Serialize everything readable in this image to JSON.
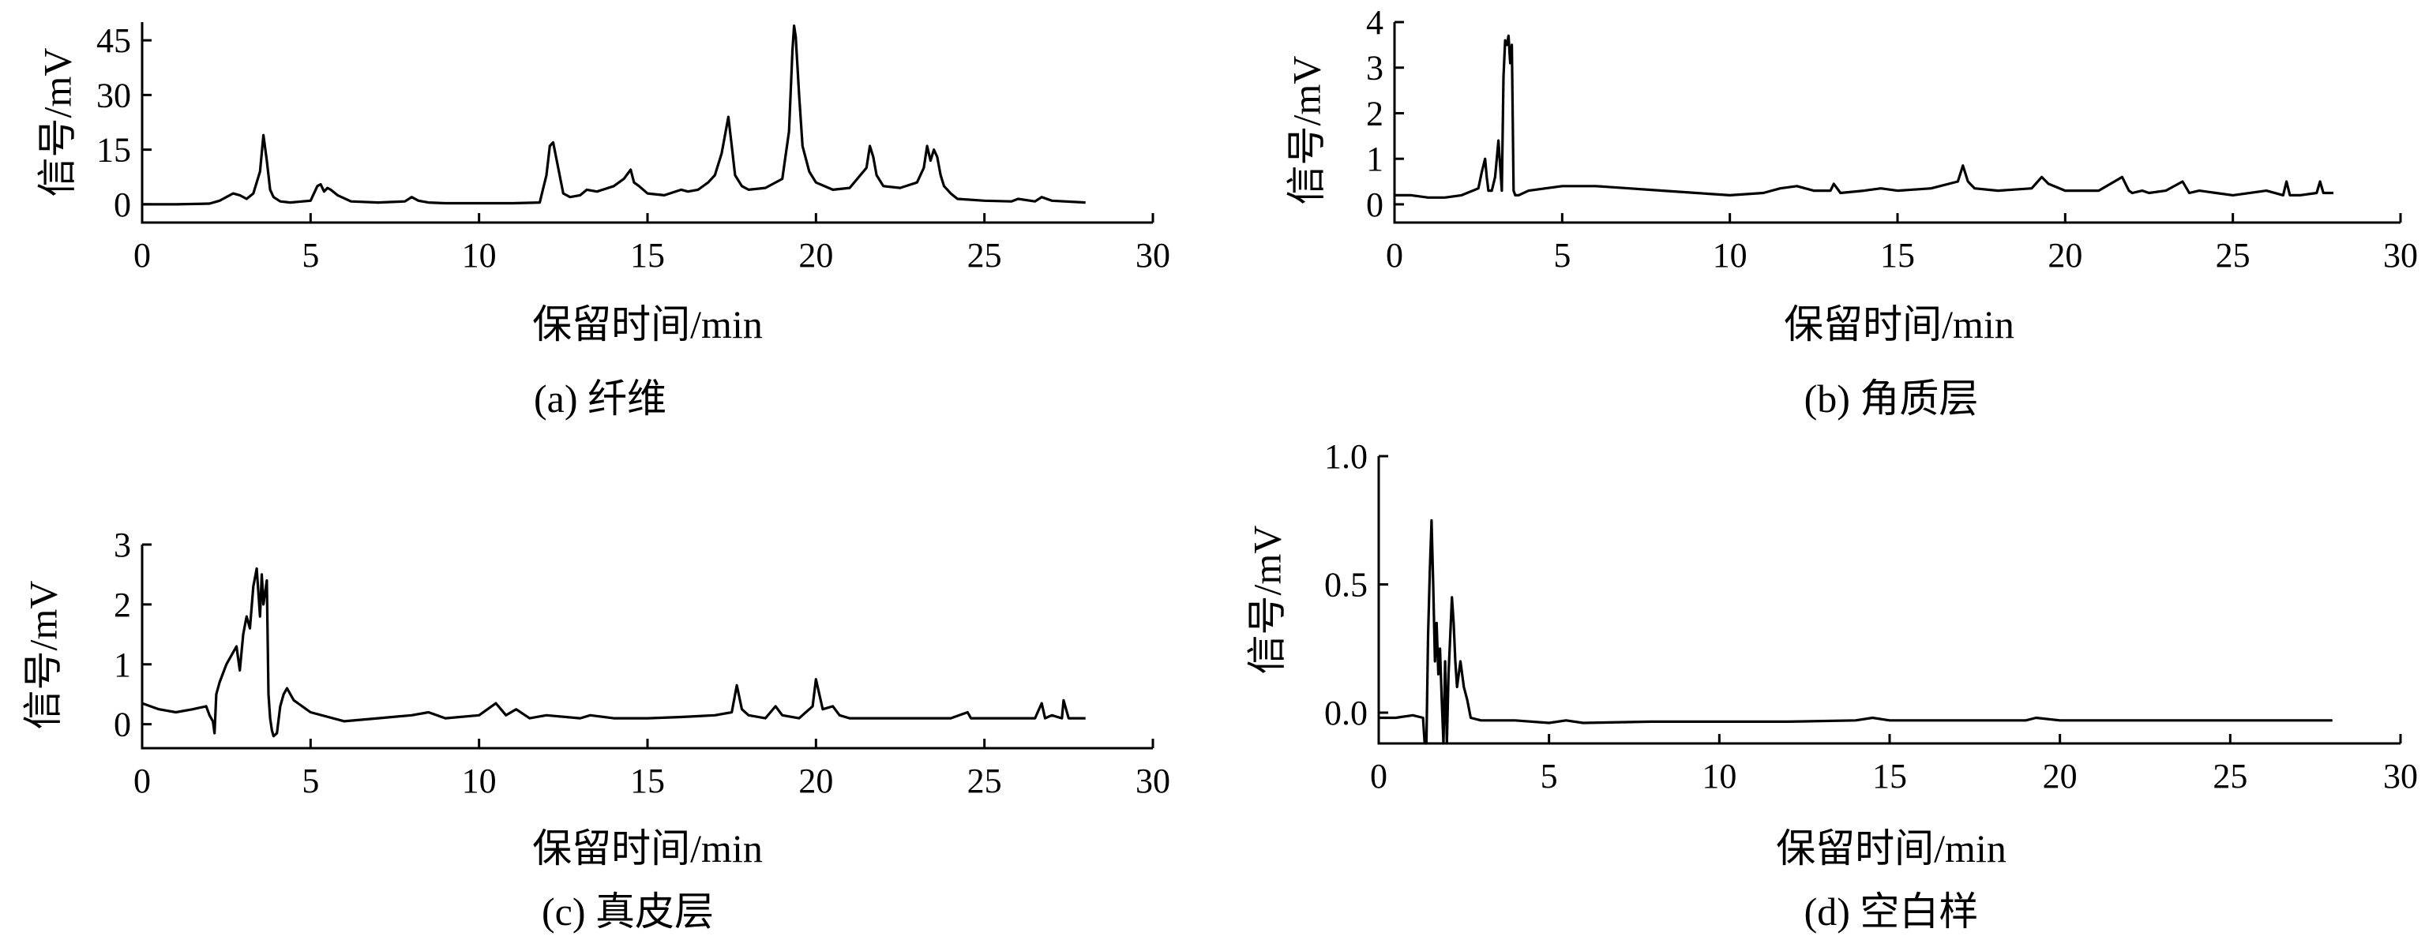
{
  "chart_data": [
    {
      "type": "line",
      "caption": "(a) 纤维",
      "xlabel": "保留时间/min",
      "ylabel": "信号/mV",
      "xlim": [
        0,
        30
      ],
      "ylim": [
        -5,
        50
      ],
      "xticks": [
        0,
        5,
        10,
        15,
        20,
        25,
        30
      ],
      "yticks": [
        0,
        15,
        30,
        45
      ],
      "series": [
        {
          "x": [
            0,
            1,
            2,
            2.3,
            2.5,
            2.7,
            2.9,
            3.1,
            3.3,
            3.5,
            3.6,
            3.7,
            3.8,
            3.9,
            4.1,
            4.4,
            5.0,
            5.2,
            5.3,
            5.4,
            5.5,
            5.6,
            5.8,
            6.2,
            7,
            7.8,
            8.0,
            8.2,
            8.5,
            9,
            10,
            11,
            11.8,
            12.0,
            12.1,
            12.2,
            12.35,
            12.5,
            12.7,
            13.0,
            13.2,
            13.5,
            14.0,
            14.3,
            14.5,
            14.6,
            14.75,
            15.0,
            15.5,
            16.0,
            16.2,
            16.5,
            16.8,
            17.0,
            17.2,
            17.4,
            17.5,
            17.6,
            17.8,
            18.0,
            18.5,
            19.0,
            19.2,
            19.3,
            19.35,
            19.4,
            19.5,
            19.6,
            19.8,
            20.0,
            20.5,
            21.0,
            21.5,
            21.6,
            21.7,
            21.8,
            22.0,
            22.5,
            23.0,
            23.2,
            23.3,
            23.4,
            23.5,
            23.6,
            23.7,
            23.8,
            24.0,
            24.2,
            25.0,
            25.8,
            26.0,
            26.5,
            26.7,
            27.0,
            28.0
          ],
          "y": [
            0,
            0,
            0.2,
            1,
            2,
            3,
            2.5,
            1.5,
            3,
            9,
            19,
            12,
            4,
            2,
            0.8,
            0.5,
            1,
            5,
            5.5,
            3.5,
            4.5,
            4,
            2.5,
            0.8,
            0.5,
            0.8,
            2,
            1,
            0.5,
            0.3,
            0.3,
            0.3,
            0.5,
            8,
            16,
            17,
            10,
            3,
            2,
            2.5,
            4,
            3.5,
            5,
            7,
            9.5,
            6,
            5,
            3,
            2.5,
            4,
            3.5,
            4,
            6,
            8,
            14,
            24,
            16,
            8,
            5,
            4,
            4.5,
            7,
            20,
            42,
            49,
            46,
            30,
            16,
            9,
            6,
            4,
            4.5,
            10,
            16,
            13,
            8,
            5,
            4.5,
            6,
            10,
            16,
            12,
            15,
            13,
            8,
            5,
            3,
            1.5,
            1,
            0.8,
            1.5,
            0.8,
            2,
            1,
            0.5
          ]
        }
      ]
    },
    {
      "type": "line",
      "caption": "(b) 角质层",
      "xlabel": "保留时间/min",
      "ylabel": "信号/mV",
      "xlim": [
        0,
        30
      ],
      "ylim": [
        -0.4,
        4
      ],
      "xticks": [
        0,
        5,
        10,
        15,
        20,
        25,
        30
      ],
      "yticks": [
        0,
        1,
        2,
        3,
        4
      ],
      "series": [
        {
          "x": [
            0,
            0.5,
            1,
            1.5,
            2,
            2.5,
            2.6,
            2.7,
            2.75,
            2.8,
            2.9,
            3.0,
            3.1,
            3.2,
            3.25,
            3.3,
            3.35,
            3.4,
            3.45,
            3.5,
            3.55,
            3.6,
            3.7,
            4,
            5,
            6,
            7,
            8,
            9,
            10,
            11,
            11.5,
            12,
            12.5,
            13,
            13.1,
            13.3,
            14,
            14.5,
            15,
            16,
            16.8,
            16.95,
            17.1,
            17.3,
            18,
            19,
            19.3,
            19.5,
            20,
            21,
            21.7,
            21.9,
            22,
            22.3,
            22.5,
            23,
            23.5,
            23.7,
            24,
            24.5,
            25,
            26,
            26.5,
            26.6,
            26.7,
            27,
            27.5,
            27.6,
            27.7,
            28
          ],
          "y": [
            0.2,
            0.2,
            0.15,
            0.15,
            0.2,
            0.35,
            0.7,
            1.0,
            0.6,
            0.3,
            0.3,
            0.6,
            1.4,
            0.3,
            2.8,
            3.6,
            3.5,
            3.7,
            3.1,
            3.5,
            0.3,
            0.2,
            0.2,
            0.3,
            0.4,
            0.4,
            0.35,
            0.3,
            0.25,
            0.2,
            0.25,
            0.35,
            0.4,
            0.3,
            0.3,
            0.45,
            0.25,
            0.3,
            0.35,
            0.3,
            0.35,
            0.5,
            0.85,
            0.5,
            0.35,
            0.3,
            0.35,
            0.6,
            0.45,
            0.3,
            0.3,
            0.6,
            0.3,
            0.25,
            0.3,
            0.25,
            0.3,
            0.5,
            0.25,
            0.3,
            0.25,
            0.2,
            0.3,
            0.2,
            0.5,
            0.2,
            0.2,
            0.25,
            0.5,
            0.25,
            0.25
          ]
        }
      ]
    },
    {
      "type": "line",
      "caption": "(c) 真皮层",
      "xlabel": "保留时间/min",
      "ylabel": "信号/mV",
      "xlim": [
        0,
        30
      ],
      "ylim": [
        -0.4,
        3
      ],
      "xticks": [
        0,
        5,
        10,
        15,
        20,
        25,
        30
      ],
      "yticks": [
        0,
        1,
        2,
        3
      ],
      "series": [
        {
          "x": [
            0,
            0.5,
            1,
            1.5,
            1.9,
            2.0,
            2.1,
            2.15,
            2.2,
            2.3,
            2.5,
            2.7,
            2.8,
            2.9,
            3.0,
            3.1,
            3.2,
            3.3,
            3.4,
            3.5,
            3.55,
            3.6,
            3.7,
            3.75,
            3.8,
            3.85,
            3.9,
            4.0,
            4.1,
            4.2,
            4.3,
            4.5,
            5,
            6,
            7,
            8,
            8.5,
            9,
            10,
            10.5,
            10.8,
            11.1,
            11.5,
            12,
            13,
            13.3,
            14,
            15,
            16,
            17,
            17.5,
            17.65,
            17.8,
            18,
            18.5,
            18.8,
            19,
            19.5,
            19.9,
            20.0,
            20.2,
            20.5,
            20.7,
            21,
            22,
            23,
            24,
            24.5,
            24.6,
            25,
            26,
            26.5,
            26.7,
            26.8,
            27,
            27.3,
            27.35,
            27.5,
            28
          ],
          "y": [
            0.35,
            0.25,
            0.2,
            0.25,
            0.3,
            0.15,
            0.05,
            -0.15,
            0.5,
            0.7,
            1.0,
            1.2,
            1.3,
            0.9,
            1.5,
            1.8,
            1.6,
            2.3,
            2.6,
            1.8,
            2.5,
            2.0,
            2.4,
            0.5,
            0.1,
            -0.1,
            -0.2,
            -0.15,
            0.3,
            0.5,
            0.6,
            0.4,
            0.2,
            0.05,
            0.1,
            0.15,
            0.2,
            0.1,
            0.15,
            0.35,
            0.15,
            0.25,
            0.1,
            0.15,
            0.1,
            0.15,
            0.1,
            0.1,
            0.12,
            0.15,
            0.2,
            0.65,
            0.25,
            0.15,
            0.1,
            0.3,
            0.15,
            0.1,
            0.3,
            0.75,
            0.25,
            0.3,
            0.15,
            0.1,
            0.1,
            0.1,
            0.1,
            0.2,
            0.1,
            0.1,
            0.1,
            0.1,
            0.35,
            0.1,
            0.15,
            0.1,
            0.4,
            0.1,
            0.1
          ]
        }
      ]
    },
    {
      "type": "line",
      "caption": "(d) 空白样",
      "xlabel": "保留时间/min",
      "ylabel": "信号/mV",
      "xlim": [
        0,
        30
      ],
      "ylim": [
        -0.12,
        1.0
      ],
      "xticks": [
        0,
        5,
        10,
        15,
        20,
        25,
        30
      ],
      "yticks": [
        0.0,
        0.5,
        1.0
      ],
      "series": [
        {
          "x": [
            0,
            0.5,
            1,
            1.3,
            1.35,
            1.4,
            1.45,
            1.5,
            1.55,
            1.6,
            1.65,
            1.7,
            1.75,
            1.8,
            1.85,
            1.9,
            1.95,
            2.0,
            2.05,
            2.1,
            2.15,
            2.2,
            2.25,
            2.3,
            2.4,
            2.5,
            2.6,
            2.7,
            3,
            4,
            5,
            5.5,
            6,
            8,
            10,
            12,
            14,
            14.5,
            15,
            17,
            19,
            19.3,
            20,
            22,
            23.5,
            25,
            28
          ],
          "y": [
            -0.02,
            -0.02,
            -0.01,
            -0.02,
            -0.12,
            -0.12,
            0.3,
            0.55,
            0.75,
            0.5,
            0.2,
            0.35,
            0.15,
            0.25,
            0.05,
            -0.12,
            0.2,
            -0.12,
            0.15,
            0.3,
            0.45,
            0.35,
            0.2,
            0.1,
            0.2,
            0.1,
            0.05,
            -0.02,
            -0.03,
            -0.03,
            -0.04,
            -0.03,
            -0.04,
            -0.035,
            -0.035,
            -0.035,
            -0.03,
            -0.02,
            -0.03,
            -0.03,
            -0.03,
            -0.02,
            -0.03,
            -0.03,
            -0.03,
            -0.03,
            -0.03
          ]
        }
      ]
    }
  ]
}
